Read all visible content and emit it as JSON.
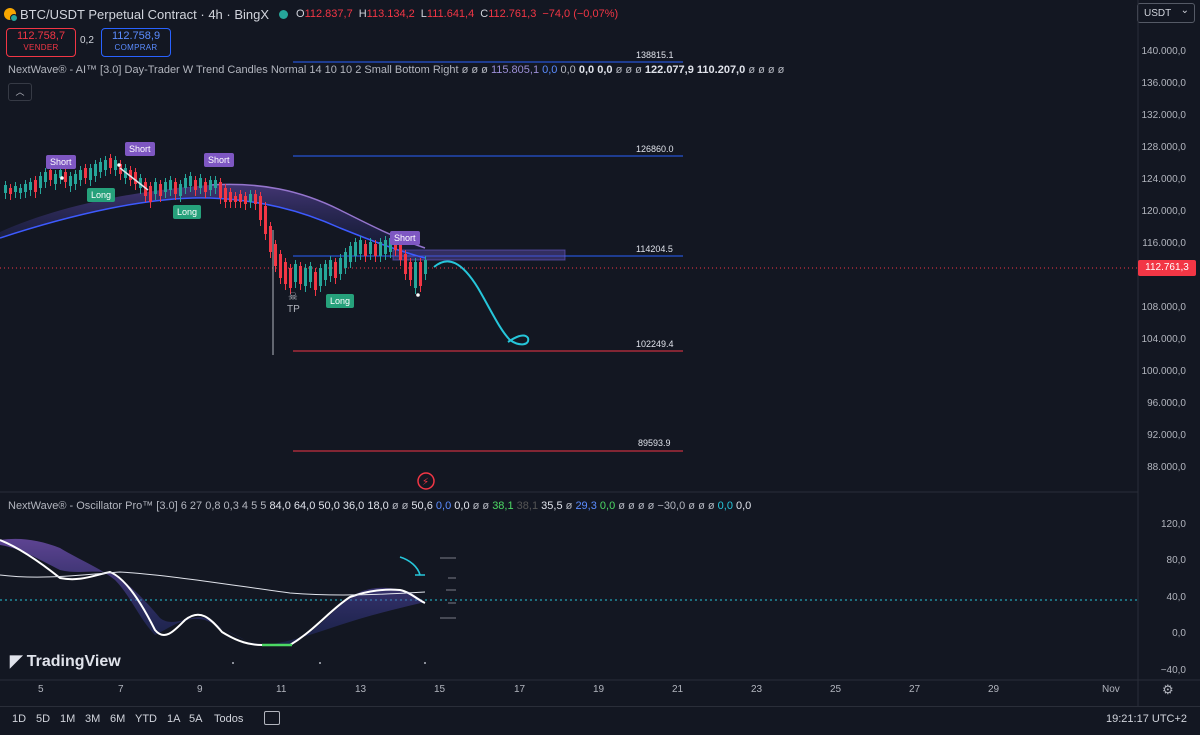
{
  "header": {
    "symbol_title": "BTC/USDT Perpetual Contract · 4h · BingX",
    "open_label": "O",
    "open": "112.837,7",
    "high_label": "H",
    "high": "113.134,2",
    "low_label": "L",
    "low": "111.641,4",
    "close_label": "C",
    "close": "112.761,3",
    "change": "−74,0 (−0,07%)"
  },
  "trade": {
    "sell_price": "112.758,7",
    "sell_label": "VENDER",
    "spread": "0,2",
    "buy_price": "112.758,9",
    "buy_label": "COMPRAR"
  },
  "currency_select": "USDT",
  "indicator_main": {
    "name": "NextWave® - AI™ [3.0] Day-Trader W Trend Candles Normal 14 10 10 2 Small Bottom Right",
    "vals_a": "ø ø ø",
    "v1": "115.805,1",
    "v2": "0,0",
    "v3": "0,0",
    "v4": "0,0",
    "v5": "0,0",
    "vals_b": "ø ø ø",
    "v6": "122.077,9",
    "v7": "110.207,0",
    "vals_c": "ø ø ø ø"
  },
  "indicator_osc": {
    "name": "NextWave® - Oscillator Pro™ [3.0] 6 27 0,8 0,3 4 5 5",
    "a": "84,0",
    "b": "64,0",
    "c": "50,0",
    "d": "36,0",
    "e": "18,0",
    "f": "ø ø",
    "g": "50,6",
    "h": "0,0",
    "i": "0,0",
    "j": "ø ø",
    "k": "38,1",
    "l": "38,1",
    "m": "35,5",
    "n": "ø",
    "o": "29,3",
    "p": "0,0",
    "q": "ø ø ø ø",
    "r": "−30,0",
    "s": "ø ø ø",
    "t": "0,0",
    "u": "0,0"
  },
  "price_axis": [
    "140.000,0",
    "136.000,0",
    "132.000,0",
    "128.000,0",
    "124.000,0",
    "120.000,0",
    "116.000,0",
    "108.000,0",
    "104.000,0",
    "100.000,0",
    "96.000,0",
    "92.000,0",
    "88.000,0"
  ],
  "current_price_tag": "112.761,3",
  "osc_axis": [
    "120,0",
    "80,0",
    "40,0",
    "0,0",
    "−40,0"
  ],
  "levels": {
    "l1": "138815.1",
    "l2": "126860.0",
    "l3": "114204.5",
    "l4": "102249.4",
    "l5": "89593.9"
  },
  "signals": {
    "short": "Short",
    "long": "Long",
    "tp": "TP"
  },
  "x_axis": [
    "5",
    "7",
    "9",
    "11",
    "13",
    "15",
    "17",
    "19",
    "21",
    "23",
    "25",
    "27",
    "29",
    "Nov"
  ],
  "ranges": [
    "1D",
    "5D",
    "1M",
    "3M",
    "6M",
    "YTD",
    "1A",
    "5A",
    "Todos"
  ],
  "clock": "19:21:17 UTC+2",
  "brand": "TradingView",
  "colors": {
    "bg": "#131722",
    "up": "#26a69a",
    "down": "#f23645",
    "accent": "#2962ff",
    "purple": "#7e57c2"
  }
}
